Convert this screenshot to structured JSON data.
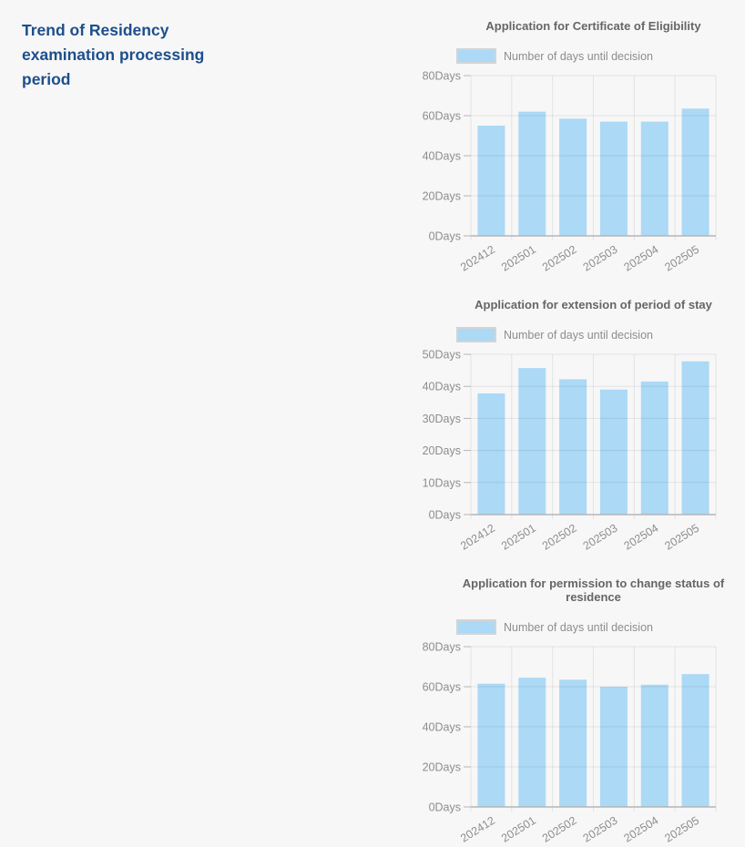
{
  "page": {
    "heading": "Trend of Residency examination processing period"
  },
  "colors": {
    "background": "#f7f7f7",
    "heading_text": "#1d4e8c",
    "chart_title_text": "#666666",
    "axis_label_text": "#8d8d8d",
    "gridline": "rgba(0,0,0,0.08)",
    "axis_line": "#b5b5b5",
    "bar_fill": "#abd9f6",
    "legend_swatch_border": "#d4d4d4"
  },
  "chart_data": [
    {
      "type": "bar",
      "title": "Application for Certificate of Eligibility",
      "legend": "Number of days until decision",
      "legend_position": "top",
      "categories": [
        "202412",
        "202501",
        "202502",
        "202503",
        "202504",
        "202505"
      ],
      "values": [
        55,
        62,
        58.5,
        57,
        57,
        63.5
      ],
      "xlabel": "",
      "ylabel": "",
      "ylim": [
        0,
        80
      ],
      "ystep": 20,
      "ytick_suffix": "Days",
      "xtick_rotation": -32,
      "grid": true,
      "bar_color": "#abd9f6"
    },
    {
      "type": "bar",
      "title": "Application for extension of period of stay",
      "legend": "Number of days until decision",
      "legend_position": "top",
      "categories": [
        "202412",
        "202501",
        "202502",
        "202503",
        "202504",
        "202505"
      ],
      "values": [
        37.8,
        45.7,
        42.2,
        39,
        41.5,
        47.8
      ],
      "xlabel": "",
      "ylabel": "",
      "ylim": [
        0,
        50
      ],
      "ystep": 10,
      "ytick_suffix": "Days",
      "xtick_rotation": -32,
      "grid": true,
      "bar_color": "#abd9f6"
    },
    {
      "type": "bar",
      "title": "Application for permission to change status of residence",
      "legend": "Number of days until decision",
      "legend_position": "top",
      "categories": [
        "202412",
        "202501",
        "202502",
        "202503",
        "202504",
        "202505"
      ],
      "values": [
        61.5,
        64.5,
        63.5,
        60,
        61,
        66.3
      ],
      "xlabel": "",
      "ylabel": "",
      "ylim": [
        0,
        80
      ],
      "ystep": 20,
      "ytick_suffix": "Days",
      "xtick_rotation": -32,
      "grid": true,
      "bar_color": "#abd9f6"
    }
  ]
}
